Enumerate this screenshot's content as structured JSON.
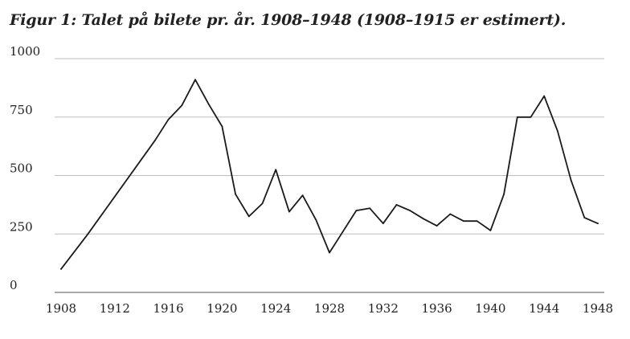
{
  "chart_data": {
    "type": "line",
    "title": "Figur 1: Talet på bilete pr. år. 1908–1948 (1908–1915 er estimert).",
    "xlabel": "",
    "ylabel": "",
    "xlim": [
      1908,
      1948
    ],
    "ylim": [
      0,
      1000
    ],
    "yticks": [
      "0",
      "250",
      "500",
      "750",
      "1000"
    ],
    "xticks": [
      "1908",
      "1912",
      "1916",
      "1920",
      "1924",
      "1928",
      "1932",
      "1936",
      "1940",
      "1944",
      "1948"
    ],
    "grid": true,
    "series": [
      {
        "name": "Bilete pr. år",
        "x": [
          1908,
          1910,
          1915,
          1916,
          1917,
          1918,
          1919,
          1920,
          1921,
          1922,
          1923,
          1924,
          1925,
          1926,
          1927,
          1928,
          1929,
          1930,
          1931,
          1932,
          1933,
          1934,
          1935,
          1936,
          1937,
          1938,
          1939,
          1940,
          1941,
          1942,
          1943,
          1944,
          1945,
          1946,
          1947,
          1948
        ],
        "y": [
          100,
          250,
          650,
          740,
          800,
          910,
          805,
          710,
          420,
          325,
          380,
          525,
          345,
          415,
          310,
          170,
          260,
          350,
          360,
          295,
          375,
          350,
          315,
          285,
          335,
          305,
          305,
          265,
          420,
          750,
          750,
          840,
          690,
          480,
          320,
          295
        ]
      }
    ],
    "colors": {
      "line": "#1a1a1a",
      "grid": "#bdbdbd",
      "axis": "#555555"
    }
  }
}
